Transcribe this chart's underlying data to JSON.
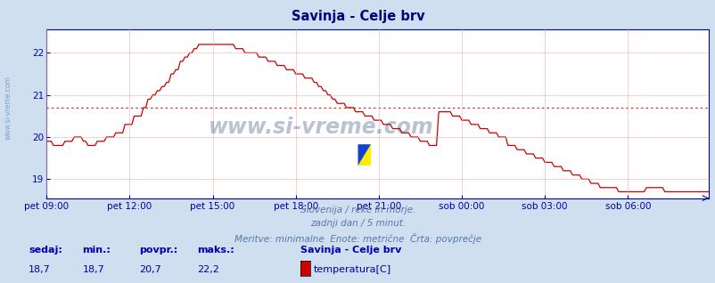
{
  "title": "Savinja - Celje brv",
  "title_color": "#000080",
  "bg_color": "#d0dff0",
  "plot_bg_color": "#ffffff",
  "grid_color": "#ffaaaa",
  "axis_color": "#0000aa",
  "line_color": "#cc0000",
  "avg_line_color": "#ff0000",
  "avg_value": 20.7,
  "ylim": [
    18.55,
    22.55
  ],
  "yticks": [
    19,
    20,
    21,
    22
  ],
  "xlabel_texts": [
    "pet 09:00",
    "pet 12:00",
    "pet 15:00",
    "pet 18:00",
    "pet 21:00",
    "sob 00:00",
    "sob 03:00",
    "sob 06:00"
  ],
  "total_points": 288,
  "subtitle1": "Slovenija / reke in morje.",
  "subtitle2": "zadnji dan / 5 minut.",
  "subtitle3": "Meritve: minimalne  Enote: metrične  Črta: povprečje",
  "footer_labels": [
    "sedaj:",
    "min.:",
    "povpr.:",
    "maks.:"
  ],
  "footer_values": [
    "18,7",
    "18,7",
    "20,7",
    "22,2"
  ],
  "legend_title": "Savinja - Celje brv",
  "legend_label": "temperatura[C]",
  "watermark": "www.si-vreme.com",
  "watermark_color": "#1a3a6a",
  "left_label": "www.si-vreme.com"
}
